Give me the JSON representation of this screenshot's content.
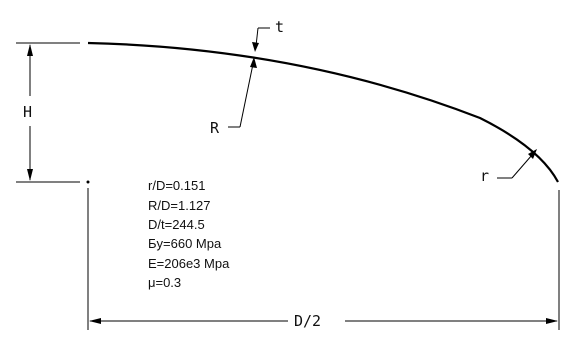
{
  "dimensions": {
    "H": "H",
    "R": "R",
    "t": "t",
    "r": "r",
    "half_diameter": "D/2"
  },
  "parameters": [
    "r/D=0.151",
    "R/D=1.127",
    "D/t=244.5",
    "Бy=660 Mpa",
    "E=206e3 Mpa",
    "μ=0.3"
  ]
}
